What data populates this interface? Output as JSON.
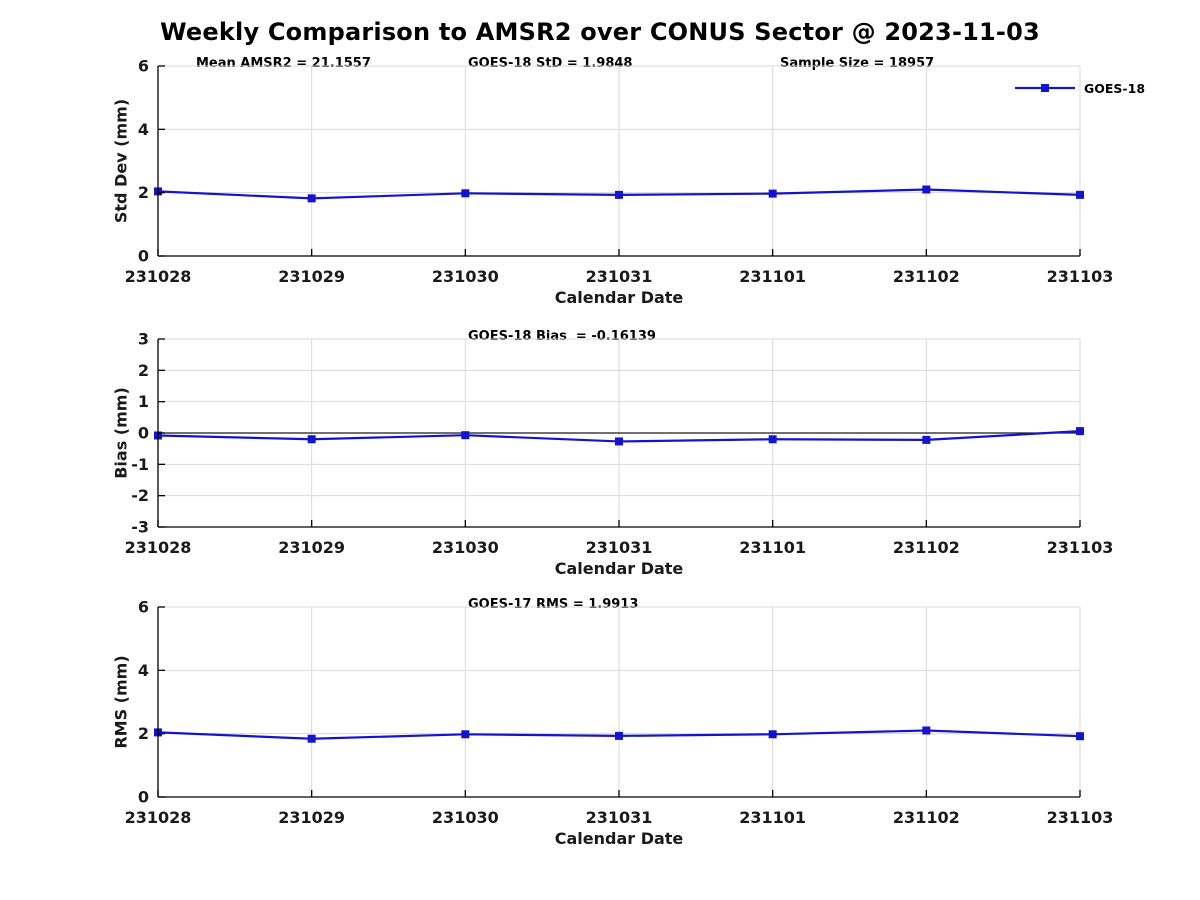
{
  "title": "Weekly Comparison to AMSR2 over CONUS Sector @ 2023-11-03",
  "legend": {
    "label": "GOES-18"
  },
  "colors": {
    "line": "#1414cd",
    "marker": "#1414cd",
    "grid": "#d9d9d9",
    "axis": "#000000",
    "zero_line": "#1a1a1a",
    "tick_text": "#1a1a1a",
    "background": "#ffffff"
  },
  "chart_data": [
    {
      "type": "line",
      "name": "std-dev",
      "ylabel": "Std Dev (mm)",
      "xlabel": "Calendar Date",
      "categories": [
        "231028",
        "231029",
        "231030",
        "231031",
        "231101",
        "231102",
        "231103"
      ],
      "series": [
        {
          "name": "GOES-18",
          "values": [
            2.04,
            1.82,
            1.98,
            1.93,
            1.97,
            2.1,
            1.93
          ]
        }
      ],
      "ylim": [
        0,
        6
      ],
      "yticks": [
        0,
        2,
        4,
        6
      ],
      "grid": true,
      "zero_line": false,
      "legend_position": "top-right",
      "annotations": [
        {
          "text": "Mean AMSR2 = 21.1557"
        },
        {
          "text": "GOES-18 StD = 1.9848"
        },
        {
          "text": "Sample Size = 18957"
        }
      ]
    },
    {
      "type": "line",
      "name": "bias",
      "ylabel": "Bias (mm)",
      "xlabel": "Calendar Date",
      "categories": [
        "231028",
        "231029",
        "231030",
        "231031",
        "231101",
        "231102",
        "231103"
      ],
      "series": [
        {
          "name": "GOES-18",
          "values": [
            -0.08,
            -0.2,
            -0.07,
            -0.27,
            -0.2,
            -0.22,
            0.06
          ]
        }
      ],
      "ylim": [
        -3,
        3
      ],
      "yticks": [
        -3,
        -2,
        -1,
        0,
        1,
        2,
        3
      ],
      "grid": true,
      "zero_line": true,
      "annotations": [
        {
          "text": "GOES-18 Bias  = -0.16139"
        }
      ]
    },
    {
      "type": "line",
      "name": "rms",
      "ylabel": "RMS (mm)",
      "xlabel": "Calendar Date",
      "categories": [
        "231028",
        "231029",
        "231030",
        "231031",
        "231101",
        "231102",
        "231103"
      ],
      "series": [
        {
          "name": "GOES-18",
          "values": [
            2.04,
            1.84,
            1.98,
            1.93,
            1.98,
            2.1,
            1.92
          ]
        }
      ],
      "ylim": [
        0,
        6
      ],
      "yticks": [
        0,
        2,
        4,
        6
      ],
      "grid": true,
      "zero_line": false,
      "annotations": [
        {
          "text": "GOES-17 RMS = 1.9913"
        }
      ]
    }
  ]
}
